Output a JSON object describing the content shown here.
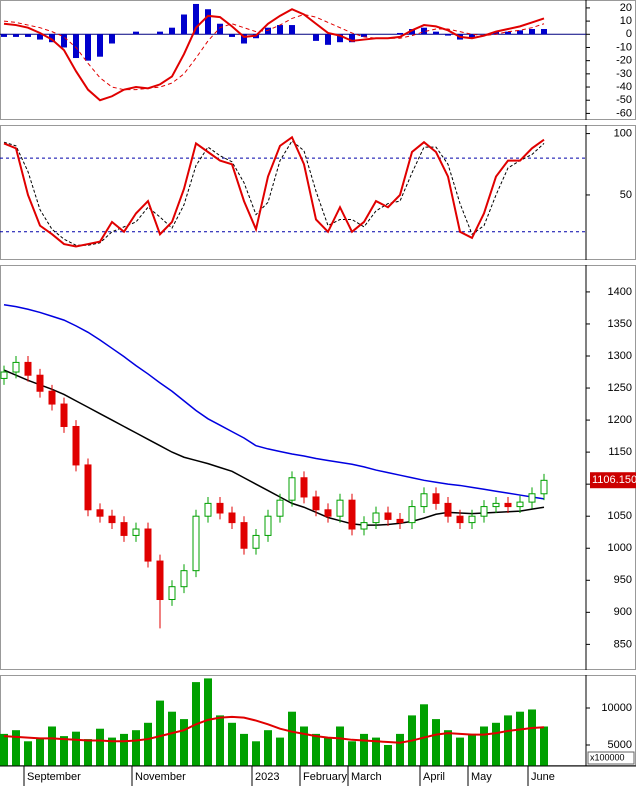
{
  "chart_data": [
    {
      "type": "macd",
      "ylim": [
        -65,
        26
      ],
      "yticks": [
        20,
        10,
        0,
        -10,
        -20,
        -30,
        -40,
        -50,
        -60
      ],
      "zero_line": true,
      "histogram": {
        "color": "#0000cc",
        "values": [
          -2,
          -2,
          -2,
          -4,
          -6,
          -10,
          -18,
          -20,
          -17,
          -7,
          0,
          2,
          0,
          2,
          5,
          15,
          23,
          19,
          8,
          -2,
          -7,
          -3,
          5,
          7,
          7,
          0,
          -5,
          -8,
          -6,
          -6,
          -2,
          0,
          0,
          1,
          4,
          5,
          2,
          -1,
          -4,
          -3,
          0,
          2,
          2,
          3,
          4,
          4
        ]
      },
      "macd": {
        "color": "#e00000",
        "values": [
          8,
          7,
          5,
          1,
          -4,
          -12,
          -28,
          -42,
          -50,
          -47,
          -42,
          -40,
          -41,
          -38,
          -32,
          -15,
          5,
          14,
          13,
          6,
          -2,
          -1,
          8,
          14,
          19,
          15,
          8,
          1,
          -1,
          -5,
          -4,
          -3,
          -3,
          -2,
          3,
          7,
          6,
          3,
          -2,
          -3,
          -1,
          2,
          4,
          6,
          9,
          12
        ]
      },
      "signal": {
        "color": "#e00000",
        "values": [
          10,
          9,
          7,
          5,
          2,
          -2,
          -10,
          -22,
          -33,
          -40,
          -42,
          -42,
          -41,
          -40,
          -37,
          -30,
          -18,
          -5,
          5,
          8,
          5,
          2,
          3,
          7,
          12,
          15,
          13,
          9,
          5,
          1,
          -2,
          -3,
          -3,
          -3,
          -1,
          2,
          4,
          4,
          2,
          0,
          -1,
          0,
          2,
          3,
          5,
          8
        ]
      }
    },
    {
      "type": "stochastic",
      "ylim": [
        -3,
        107
      ],
      "yticks": [
        100,
        50
      ],
      "levels": [
        80,
        20
      ],
      "level_color": "#0000aa",
      "k": {
        "color": "#e00000",
        "values": [
          92,
          88,
          50,
          25,
          18,
          10,
          8,
          10,
          12,
          28,
          20,
          35,
          45,
          18,
          28,
          55,
          92,
          85,
          78,
          75,
          45,
          22,
          65,
          90,
          97,
          75,
          30,
          20,
          40,
          20,
          28,
          45,
          40,
          50,
          85,
          93,
          85,
          65,
          20,
          15,
          35,
          65,
          78,
          78,
          88,
          95
        ]
      },
      "d": {
        "color": "#000000",
        "values": [
          93,
          90,
          69,
          38,
          22,
          14,
          9,
          9,
          11,
          20,
          24,
          28,
          40,
          32,
          23,
          42,
          74,
          89,
          82,
          77,
          60,
          34,
          44,
          78,
          94,
          86,
          53,
          25,
          30,
          30,
          24,
          37,
          43,
          45,
          68,
          89,
          89,
          75,
          43,
          18,
          25,
          50,
          72,
          78,
          83,
          92
        ]
      }
    },
    {
      "type": "candlestick",
      "ylim": [
        810,
        1442
      ],
      "yticks": [
        850,
        900,
        950,
        1000,
        1050,
        1100,
        1150,
        1200,
        1250,
        1300,
        1350,
        1400
      ],
      "up_color": "#00a000",
      "down_color": "#e00000",
      "open": [
        1265,
        1275,
        1290,
        1270,
        1245,
        1225,
        1190,
        1130,
        1060,
        1050,
        1040,
        1020,
        1030,
        980,
        920,
        940,
        965,
        1050,
        1070,
        1055,
        1040,
        1000,
        1020,
        1050,
        1075,
        1110,
        1080,
        1060,
        1050,
        1075,
        1030,
        1040,
        1055,
        1045,
        1040,
        1065,
        1085,
        1070,
        1050,
        1040,
        1050,
        1065,
        1070,
        1065,
        1072,
        1085
      ],
      "high": [
        1285,
        1300,
        1300,
        1280,
        1255,
        1235,
        1200,
        1140,
        1070,
        1060,
        1050,
        1040,
        1040,
        990,
        950,
        975,
        1060,
        1080,
        1080,
        1065,
        1050,
        1030,
        1060,
        1085,
        1120,
        1120,
        1090,
        1070,
        1085,
        1085,
        1050,
        1065,
        1065,
        1055,
        1075,
        1095,
        1095,
        1080,
        1060,
        1060,
        1075,
        1080,
        1080,
        1082,
        1095,
        1116
      ],
      "low": [
        1255,
        1265,
        1260,
        1235,
        1215,
        1180,
        1120,
        1050,
        1040,
        1030,
        1010,
        1010,
        970,
        875,
        910,
        930,
        955,
        1040,
        1045,
        1030,
        990,
        990,
        1010,
        1040,
        1065,
        1070,
        1050,
        1040,
        1040,
        1020,
        1020,
        1030,
        1035,
        1030,
        1030,
        1055,
        1060,
        1040,
        1030,
        1030,
        1040,
        1055,
        1055,
        1055,
        1062,
        1075
      ],
      "close": [
        1275,
        1290,
        1270,
        1245,
        1225,
        1190,
        1130,
        1060,
        1050,
        1040,
        1020,
        1030,
        980,
        920,
        940,
        965,
        1050,
        1070,
        1055,
        1040,
        1000,
        1020,
        1050,
        1075,
        1110,
        1080,
        1060,
        1050,
        1075,
        1030,
        1040,
        1055,
        1045,
        1040,
        1065,
        1085,
        1070,
        1050,
        1040,
        1050,
        1065,
        1070,
        1065,
        1072,
        1085,
        1106
      ],
      "ma_long": {
        "color": "#0000e0",
        "values": [
          1380,
          1377,
          1373,
          1368,
          1362,
          1356,
          1347,
          1337,
          1325,
          1312,
          1299,
          1285,
          1272,
          1258,
          1245,
          1230,
          1215,
          1202,
          1192,
          1182,
          1172,
          1160,
          1155,
          1151,
          1147,
          1144,
          1140,
          1137,
          1134,
          1131,
          1127,
          1122,
          1118,
          1114,
          1110,
          1106,
          1103,
          1100,
          1098,
          1095,
          1092,
          1089,
          1086,
          1083,
          1080,
          1077
        ]
      },
      "ma_short": {
        "color": "#000000",
        "values": [
          1278,
          1270,
          1262,
          1255,
          1248,
          1240,
          1230,
          1220,
          1210,
          1200,
          1190,
          1180,
          1170,
          1160,
          1150,
          1142,
          1137,
          1132,
          1126,
          1120,
          1110,
          1100,
          1090,
          1080,
          1070,
          1064,
          1056,
          1048,
          1043,
          1038,
          1036,
          1036,
          1037,
          1039,
          1042,
          1047,
          1053,
          1056,
          1055,
          1054,
          1055,
          1056,
          1057,
          1058,
          1061,
          1064
        ]
      },
      "last_price": {
        "value": 1106.15,
        "label": "1106.150"
      },
      "last_price_color": "#cc0000"
    },
    {
      "type": "volume",
      "ylim": [
        2160,
        14460
      ],
      "yticks": [
        10000,
        5000
      ],
      "unit_label": "x100000",
      "color": "#00a000",
      "values": [
        6500,
        7000,
        5500,
        6000,
        7500,
        6200,
        6800,
        5800,
        7200,
        6000,
        6500,
        7000,
        8000,
        11000,
        9500,
        8500,
        13500,
        14000,
        9000,
        8000,
        6500,
        5500,
        7000,
        6000,
        9500,
        7500,
        6500,
        6000,
        7500,
        5500,
        6500,
        6000,
        5000,
        6500,
        9000,
        10500,
        8500,
        7000,
        6000,
        6500,
        7500,
        8000,
        9000,
        9500,
        9800,
        7500
      ],
      "ma": {
        "color": "#e00000",
        "values": [
          6200,
          6100,
          6000,
          5900,
          5900,
          5800,
          5700,
          5600,
          5600,
          5500,
          5500,
          5600,
          5800,
          6200,
          6600,
          7000,
          7800,
          8400,
          8700,
          8800,
          8700,
          8300,
          7800,
          7200,
          6800,
          6500,
          6200,
          6000,
          5900,
          5700,
          5600,
          5500,
          5400,
          5300,
          5600,
          6000,
          6400,
          6600,
          6500,
          6400,
          6400,
          6600,
          6900,
          7100,
          7300,
          7400
        ]
      },
      "categories": [
        null,
        null,
        "September",
        null,
        null,
        null,
        null,
        null,
        null,
        null,
        null,
        "November",
        null,
        null,
        null,
        null,
        null,
        null,
        null,
        null,
        null,
        "2023",
        null,
        null,
        null,
        "February",
        null,
        null,
        null,
        "March",
        null,
        null,
        null,
        null,
        null,
        "April",
        null,
        null,
        null,
        "May",
        null,
        null,
        null,
        null,
        "June",
        null
      ]
    }
  ]
}
